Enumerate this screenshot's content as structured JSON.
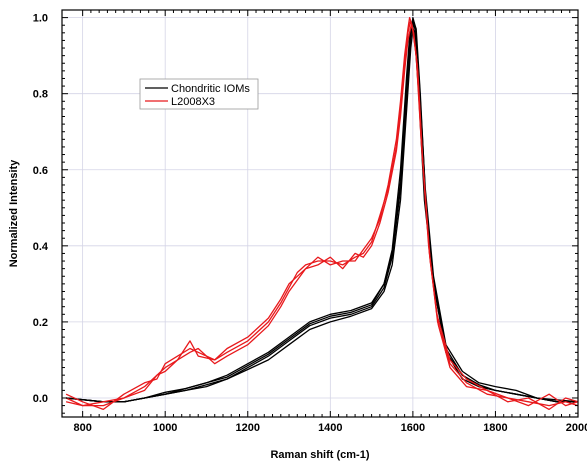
{
  "chart_data": {
    "type": "line",
    "title": "",
    "xlabel": "Raman shift (cm-1)",
    "ylabel": "Normalized Intensity",
    "xlim": [
      750,
      2000
    ],
    "ylim": [
      -0.05,
      1.02
    ],
    "xticks": [
      800,
      1000,
      1200,
      1400,
      1600,
      1800,
      2000
    ],
    "xtick_labels": [
      "800",
      "1000",
      "1200",
      "1400",
      "1600",
      "1800",
      "2000"
    ],
    "yticks": [
      0.0,
      0.2,
      0.4,
      0.6,
      0.8,
      1.0
    ],
    "ytick_labels": [
      "0.0",
      "0.2",
      "0.4",
      "0.6",
      "0.8",
      "1.0"
    ],
    "grid": true,
    "legend_position": "upper-left",
    "colors": {
      "Chondritic IOMs": "#000000",
      "L2008X3": "#e8191c"
    },
    "series": [
      {
        "name": "Chondritic IOMs",
        "curves": [
          [
            [
              760,
              0.0
            ],
            [
              850,
              -0.01
            ],
            [
              900,
              -0.01
            ],
            [
              950,
              0.0
            ],
            [
              1000,
              0.01
            ],
            [
              1050,
              0.02
            ],
            [
              1100,
              0.035
            ],
            [
              1150,
              0.05
            ],
            [
              1200,
              0.08
            ],
            [
              1250,
              0.11
            ],
            [
              1300,
              0.15
            ],
            [
              1350,
              0.19
            ],
            [
              1400,
              0.21
            ],
            [
              1450,
              0.22
            ],
            [
              1500,
              0.24
            ],
            [
              1530,
              0.29
            ],
            [
              1550,
              0.37
            ],
            [
              1570,
              0.55
            ],
            [
              1585,
              0.8
            ],
            [
              1595,
              0.95
            ],
            [
              1600,
              0.99
            ],
            [
              1605,
              0.97
            ],
            [
              1615,
              0.82
            ],
            [
              1630,
              0.52
            ],
            [
              1650,
              0.3
            ],
            [
              1680,
              0.12
            ],
            [
              1720,
              0.05
            ],
            [
              1760,
              0.03
            ],
            [
              1800,
              0.02
            ],
            [
              1850,
              0.01
            ],
            [
              1900,
              0.0
            ],
            [
              1950,
              -0.01
            ],
            [
              2000,
              -0.01
            ]
          ],
          [
            [
              760,
              0.0
            ],
            [
              850,
              -0.01
            ],
            [
              900,
              -0.01
            ],
            [
              950,
              0.0
            ],
            [
              1000,
              0.01
            ],
            [
              1050,
              0.025
            ],
            [
              1100,
              0.04
            ],
            [
              1150,
              0.06
            ],
            [
              1200,
              0.09
            ],
            [
              1250,
              0.12
            ],
            [
              1300,
              0.16
            ],
            [
              1350,
              0.2
            ],
            [
              1400,
              0.22
            ],
            [
              1450,
              0.23
            ],
            [
              1500,
              0.25
            ],
            [
              1530,
              0.3
            ],
            [
              1550,
              0.38
            ],
            [
              1570,
              0.57
            ],
            [
              1585,
              0.82
            ],
            [
              1595,
              0.96
            ],
            [
              1600,
              1.0
            ],
            [
              1605,
              0.98
            ],
            [
              1615,
              0.84
            ],
            [
              1630,
              0.55
            ],
            [
              1650,
              0.32
            ],
            [
              1680,
              0.14
            ],
            [
              1720,
              0.07
            ],
            [
              1760,
              0.04
            ],
            [
              1800,
              0.03
            ],
            [
              1850,
              0.02
            ],
            [
              1900,
              0.0
            ],
            [
              1950,
              -0.01
            ],
            [
              2000,
              -0.01
            ]
          ],
          [
            [
              760,
              0.0
            ],
            [
              850,
              -0.01
            ],
            [
              900,
              -0.01
            ],
            [
              950,
              0.0
            ],
            [
              1000,
              0.01
            ],
            [
              1050,
              0.02
            ],
            [
              1100,
              0.03
            ],
            [
              1150,
              0.05
            ],
            [
              1200,
              0.075
            ],
            [
              1250,
              0.1
            ],
            [
              1300,
              0.14
            ],
            [
              1350,
              0.18
            ],
            [
              1400,
              0.2
            ],
            [
              1450,
              0.215
            ],
            [
              1500,
              0.235
            ],
            [
              1530,
              0.28
            ],
            [
              1550,
              0.35
            ],
            [
              1570,
              0.52
            ],
            [
              1585,
              0.76
            ],
            [
              1595,
              0.92
            ],
            [
              1602,
              0.99
            ],
            [
              1608,
              0.97
            ],
            [
              1618,
              0.8
            ],
            [
              1632,
              0.5
            ],
            [
              1650,
              0.31
            ],
            [
              1680,
              0.13
            ],
            [
              1720,
              0.06
            ],
            [
              1760,
              0.03
            ],
            [
              1800,
              0.02
            ],
            [
              1850,
              0.01
            ],
            [
              1900,
              0.0
            ],
            [
              1950,
              -0.01
            ],
            [
              2000,
              -0.01
            ]
          ],
          [
            [
              760,
              0.0
            ],
            [
              850,
              -0.01
            ],
            [
              900,
              -0.01
            ],
            [
              950,
              0.0
            ],
            [
              1000,
              0.015
            ],
            [
              1050,
              0.025
            ],
            [
              1100,
              0.04
            ],
            [
              1150,
              0.055
            ],
            [
              1200,
              0.085
            ],
            [
              1250,
              0.115
            ],
            [
              1300,
              0.155
            ],
            [
              1350,
              0.195
            ],
            [
              1400,
              0.215
            ],
            [
              1450,
              0.225
            ],
            [
              1500,
              0.245
            ],
            [
              1530,
              0.3
            ],
            [
              1550,
              0.39
            ],
            [
              1570,
              0.6
            ],
            [
              1585,
              0.85
            ],
            [
              1592,
              0.95
            ],
            [
              1598,
              0.98
            ],
            [
              1604,
              0.96
            ],
            [
              1614,
              0.8
            ],
            [
              1628,
              0.52
            ],
            [
              1650,
              0.3
            ],
            [
              1680,
              0.12
            ],
            [
              1720,
              0.06
            ],
            [
              1760,
              0.035
            ],
            [
              1800,
              0.02
            ],
            [
              1850,
              0.01
            ],
            [
              1900,
              0.0
            ],
            [
              1950,
              -0.005
            ],
            [
              2000,
              -0.01
            ]
          ]
        ]
      },
      {
        "name": "L2008X3",
        "curves": [
          [
            [
              760,
              0.0
            ],
            [
              800,
              -0.02
            ],
            [
              850,
              -0.02
            ],
            [
              900,
              0.0
            ],
            [
              950,
              0.03
            ],
            [
              980,
              0.06
            ],
            [
              1000,
              0.08
            ],
            [
              1030,
              0.1
            ],
            [
              1060,
              0.15
            ],
            [
              1080,
              0.11
            ],
            [
              1120,
              0.1
            ],
            [
              1150,
              0.12
            ],
            [
              1200,
              0.15
            ],
            [
              1250,
              0.2
            ],
            [
              1280,
              0.25
            ],
            [
              1300,
              0.29
            ],
            [
              1320,
              0.33
            ],
            [
              1340,
              0.35
            ],
            [
              1370,
              0.36
            ],
            [
              1400,
              0.36
            ],
            [
              1430,
              0.35
            ],
            [
              1460,
              0.37
            ],
            [
              1480,
              0.38
            ],
            [
              1500,
              0.41
            ],
            [
              1520,
              0.48
            ],
            [
              1540,
              0.55
            ],
            [
              1560,
              0.66
            ],
            [
              1570,
              0.76
            ],
            [
              1580,
              0.88
            ],
            [
              1588,
              0.96
            ],
            [
              1594,
              0.99
            ],
            [
              1600,
              0.97
            ],
            [
              1610,
              0.88
            ],
            [
              1622,
              0.65
            ],
            [
              1640,
              0.38
            ],
            [
              1660,
              0.2
            ],
            [
              1690,
              0.09
            ],
            [
              1730,
              0.04
            ],
            [
              1780,
              0.01
            ],
            [
              1830,
              0.0
            ],
            [
              1880,
              -0.01
            ],
            [
              1930,
              -0.02
            ],
            [
              1970,
              -0.01
            ],
            [
              2000,
              -0.02
            ]
          ],
          [
            [
              760,
              0.01
            ],
            [
              800,
              -0.01
            ],
            [
              850,
              -0.03
            ],
            [
              900,
              0.01
            ],
            [
              950,
              0.04
            ],
            [
              980,
              0.05
            ],
            [
              1000,
              0.09
            ],
            [
              1030,
              0.11
            ],
            [
              1060,
              0.13
            ],
            [
              1080,
              0.12
            ],
            [
              1120,
              0.1
            ],
            [
              1150,
              0.13
            ],
            [
              1200,
              0.16
            ],
            [
              1250,
              0.21
            ],
            [
              1280,
              0.26
            ],
            [
              1300,
              0.3
            ],
            [
              1320,
              0.32
            ],
            [
              1340,
              0.34
            ],
            [
              1370,
              0.37
            ],
            [
              1400,
              0.35
            ],
            [
              1430,
              0.36
            ],
            [
              1460,
              0.36
            ],
            [
              1480,
              0.39
            ],
            [
              1500,
              0.42
            ],
            [
              1520,
              0.47
            ],
            [
              1540,
              0.56
            ],
            [
              1560,
              0.68
            ],
            [
              1570,
              0.78
            ],
            [
              1580,
              0.9
            ],
            [
              1588,
              0.97
            ],
            [
              1592,
              1.0
            ],
            [
              1598,
              0.98
            ],
            [
              1608,
              0.9
            ],
            [
              1620,
              0.68
            ],
            [
              1638,
              0.4
            ],
            [
              1658,
              0.22
            ],
            [
              1690,
              0.1
            ],
            [
              1730,
              0.05
            ],
            [
              1780,
              0.02
            ],
            [
              1830,
              0.0
            ],
            [
              1880,
              -0.02
            ],
            [
              1930,
              0.01
            ],
            [
              1970,
              -0.02
            ],
            [
              2000,
              -0.01
            ]
          ],
          [
            [
              760,
              -0.01
            ],
            [
              800,
              -0.02
            ],
            [
              850,
              -0.01
            ],
            [
              900,
              0.0
            ],
            [
              950,
              0.02
            ],
            [
              980,
              0.06
            ],
            [
              1000,
              0.07
            ],
            [
              1030,
              0.1
            ],
            [
              1060,
              0.12
            ],
            [
              1080,
              0.13
            ],
            [
              1120,
              0.09
            ],
            [
              1150,
              0.11
            ],
            [
              1200,
              0.14
            ],
            [
              1250,
              0.19
            ],
            [
              1280,
              0.24
            ],
            [
              1300,
              0.28
            ],
            [
              1320,
              0.31
            ],
            [
              1340,
              0.34
            ],
            [
              1370,
              0.35
            ],
            [
              1400,
              0.37
            ],
            [
              1430,
              0.34
            ],
            [
              1460,
              0.38
            ],
            [
              1480,
              0.37
            ],
            [
              1500,
              0.4
            ],
            [
              1520,
              0.46
            ],
            [
              1540,
              0.54
            ],
            [
              1560,
              0.65
            ],
            [
              1570,
              0.74
            ],
            [
              1580,
              0.86
            ],
            [
              1588,
              0.94
            ],
            [
              1596,
              0.98
            ],
            [
              1602,
              0.96
            ],
            [
              1612,
              0.86
            ],
            [
              1624,
              0.62
            ],
            [
              1642,
              0.36
            ],
            [
              1662,
              0.19
            ],
            [
              1690,
              0.08
            ],
            [
              1730,
              0.03
            ],
            [
              1780,
              0.02
            ],
            [
              1830,
              -0.01
            ],
            [
              1880,
              0.0
            ],
            [
              1930,
              -0.03
            ],
            [
              1970,
              0.0
            ],
            [
              2000,
              -0.01
            ]
          ]
        ]
      }
    ]
  }
}
